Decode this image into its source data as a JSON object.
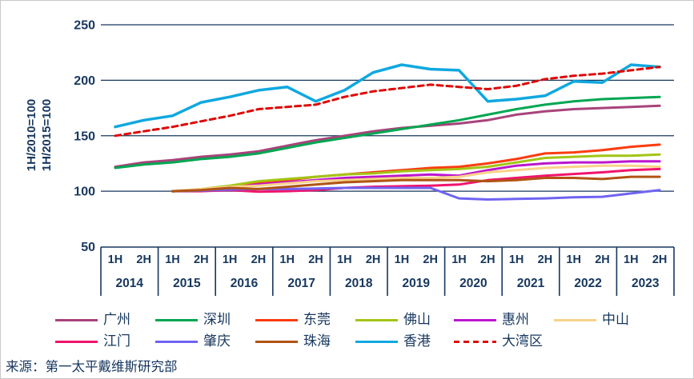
{
  "text_color": "#17375E",
  "grid_color": "#17375E",
  "background": "#ffffff",
  "axes": {
    "y_title_lines": [
      "1H/2010=100",
      "1H/2015=100"
    ],
    "y_ticks": [
      250,
      200,
      150,
      100,
      50
    ],
    "x_half_labels": [
      "1H",
      "2H"
    ],
    "x_years": [
      "2014",
      "2015",
      "2016",
      "2017",
      "2018",
      "2019",
      "2020",
      "2021",
      "2022",
      "2023"
    ]
  },
  "source": "来源：第一太平戴维斯研究部",
  "chart_data": {
    "type": "line",
    "title": "",
    "xlabel": "",
    "ylabel": "1H/2010=100 ; 1H/2015=100",
    "ylim": [
      50,
      250
    ],
    "grid": "horizontal",
    "legend_position": "bottom",
    "x": [
      "1H 2014",
      "2H 2014",
      "1H 2015",
      "2H 2015",
      "1H 2016",
      "2H 2016",
      "1H 2017",
      "2H 2017",
      "1H 2018",
      "2H 2018",
      "1H 2019",
      "2H 2019",
      "1H 2020",
      "2H 2020",
      "1H 2021",
      "2H 2021",
      "1H 2022",
      "2H 2022",
      "1H 2023",
      "2H 2023"
    ],
    "series": [
      {
        "id": "guangzhou",
        "name": "广州",
        "color": "#A8437A",
        "dash": false,
        "values": [
          122,
          126,
          128,
          131,
          133,
          136,
          141,
          146,
          150,
          154,
          157,
          159,
          161,
          164,
          169,
          172,
          174,
          175,
          176,
          177
        ]
      },
      {
        "id": "shenzhen",
        "name": "深圳",
        "color": "#00A651",
        "dash": false,
        "values": [
          121,
          124,
          126,
          129,
          131,
          134,
          139,
          144,
          148,
          152,
          156,
          160,
          164,
          169,
          174,
          178,
          181,
          183,
          184,
          185
        ]
      },
      {
        "id": "dongguan",
        "name": "东莞",
        "color": "#FA3C10",
        "dash": false,
        "values": [
          null,
          null,
          100,
          101,
          104,
          107,
          110,
          113,
          115,
          117,
          119,
          121,
          122,
          125,
          129,
          134,
          135,
          137,
          140,
          142
        ]
      },
      {
        "id": "foshan",
        "name": "佛山",
        "color": "#A2C515",
        "dash": false,
        "values": [
          null,
          null,
          100,
          102,
          105,
          109,
          111,
          113,
          115,
          116,
          118,
          119,
          120,
          122,
          126,
          130,
          131,
          132,
          132,
          133
        ]
      },
      {
        "id": "huizhou",
        "name": "惠州",
        "color": "#BB16CE",
        "dash": false,
        "values": [
          null,
          null,
          100,
          101,
          103,
          106,
          108,
          110,
          112,
          113,
          114,
          115,
          114,
          119,
          123,
          125,
          126,
          126,
          127,
          127
        ]
      },
      {
        "id": "zhongshan",
        "name": "中山",
        "color": "#F8D38A",
        "dash": false,
        "values": [
          null,
          null,
          100,
          102,
          104,
          105,
          107,
          109,
          110,
          111,
          112,
          112,
          113,
          117,
          119,
          121,
          122,
          123,
          123,
          122
        ]
      },
      {
        "id": "jiangmen",
        "name": "江门",
        "color": "#F0146C",
        "dash": false,
        "values": [
          null,
          null,
          100,
          100,
          101,
          99.5,
          100,
          101,
          103,
          104,
          104.5,
          105,
          106,
          110,
          112,
          114,
          115.5,
          117,
          119,
          120
        ]
      },
      {
        "id": "zhaoqing",
        "name": "肇庆",
        "color": "#7063F2",
        "dash": false,
        "values": [
          null,
          null,
          100,
          100.5,
          101.5,
          102,
          102,
          102.5,
          103,
          103,
          103,
          103,
          93.5,
          92.5,
          93,
          93.5,
          94.5,
          95,
          98,
          101
        ]
      },
      {
        "id": "zhuhai",
        "name": "珠海",
        "color": "#B05414",
        "dash": false,
        "values": [
          null,
          null,
          100,
          101,
          103,
          102,
          104,
          106,
          108,
          109,
          110,
          110,
          110,
          109,
          110,
          112,
          112,
          111,
          113,
          113
        ]
      },
      {
        "id": "hong-kong",
        "name": "香港",
        "color": "#10A8DF",
        "dash": false,
        "values": [
          158,
          164,
          168,
          180,
          185,
          191,
          194,
          181,
          191,
          207,
          214,
          210,
          209,
          181,
          183,
          186,
          199,
          198,
          214,
          212
        ]
      },
      {
        "id": "greater-bay-area",
        "name": "大湾区",
        "color": "#DE0806",
        "dash": true,
        "values": [
          150,
          154,
          158,
          163,
          168,
          174,
          176,
          178,
          185,
          190,
          193,
          196,
          194,
          192,
          195,
          201,
          204,
          206,
          209,
          212
        ]
      }
    ],
    "legend_rows": [
      [
        "guangzhou",
        "shenzhen",
        "dongguan",
        "foshan",
        "huizhou",
        "zhongshan"
      ],
      [
        "jiangmen",
        "zhaoqing",
        "zhuhai",
        "hong-kong",
        "greater-bay-area"
      ]
    ]
  }
}
